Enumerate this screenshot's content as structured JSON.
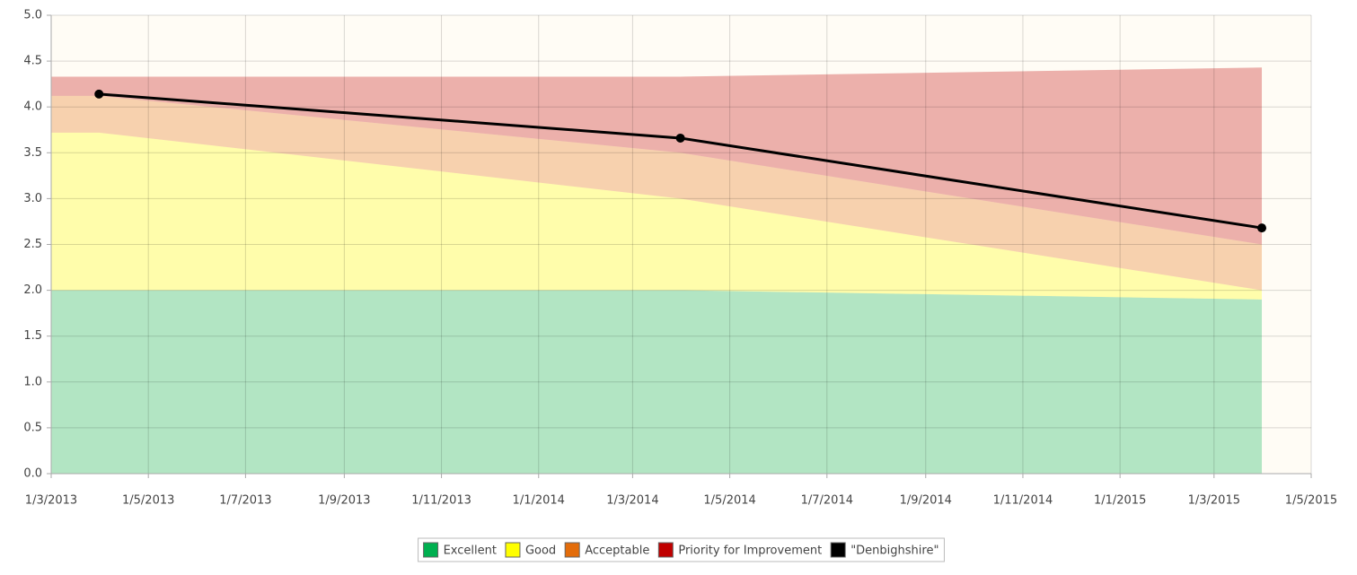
{
  "chart_data": {
    "type": "stacked_area_line",
    "x": [
      "2013-03-01",
      "2013-03-31",
      "2014-03-31",
      "2015-03-31"
    ],
    "series": [
      {
        "name": "Excellent",
        "type": "area",
        "color": "#00b050",
        "values": [
          2.0,
          2.0,
          2.0,
          1.9
        ]
      },
      {
        "name": "Good",
        "type": "area",
        "color": "#ffff00",
        "values": [
          1.72,
          1.72,
          1.0,
          0.1
        ]
      },
      {
        "name": "Acceptable",
        "type": "area",
        "color": "#e36c0a",
        "values": [
          0.4,
          0.4,
          0.5,
          0.5
        ]
      },
      {
        "name": "Priority for Improvement",
        "type": "area",
        "color": "#c00000",
        "values": [
          0.21,
          0.21,
          0.83,
          1.93
        ]
      },
      {
        "name": "\"Denbighshire\"",
        "type": "line",
        "color": "#000000",
        "values": [
          null,
          4.14,
          3.66,
          2.68
        ]
      }
    ],
    "ylim": [
      0,
      5
    ],
    "yticks": [
      {
        "value": 0,
        "label": "0.0"
      },
      {
        "value": 0.5,
        "label": "0.5"
      },
      {
        "value": 1,
        "label": "1.0"
      },
      {
        "value": 1.5,
        "label": "1.5"
      },
      {
        "value": 2,
        "label": "2.0"
      },
      {
        "value": 2.5,
        "label": "2.5"
      },
      {
        "value": 3,
        "label": "3.0"
      },
      {
        "value": 3.5,
        "label": "3.5"
      },
      {
        "value": 4,
        "label": "4.0"
      },
      {
        "value": 4.5,
        "label": "4.5"
      },
      {
        "value": 5,
        "label": "5.0"
      }
    ],
    "xlim": [
      "2013-03-01",
      "2015-05-01"
    ],
    "xticks": [
      {
        "value": "2013-03-01",
        "label": "1/3/2013"
      },
      {
        "value": "2013-05-01",
        "label": "1/5/2013"
      },
      {
        "value": "2013-07-01",
        "label": "1/7/2013"
      },
      {
        "value": "2013-09-01",
        "label": "1/9/2013"
      },
      {
        "value": "2013-11-01",
        "label": "1/11/2013"
      },
      {
        "value": "2014-01-01",
        "label": "1/1/2014"
      },
      {
        "value": "2014-03-01",
        "label": "1/3/2014"
      },
      {
        "value": "2014-05-01",
        "label": "1/5/2014"
      },
      {
        "value": "2014-07-01",
        "label": "1/7/2014"
      },
      {
        "value": "2014-09-01",
        "label": "1/9/2014"
      },
      {
        "value": "2014-11-01",
        "label": "1/11/2014"
      },
      {
        "value": "2015-01-01",
        "label": "1/1/2015"
      },
      {
        "value": "2015-03-01",
        "label": "1/3/2015"
      },
      {
        "value": "2015-05-01",
        "label": "1/5/2015"
      }
    ],
    "grid": true,
    "legend": "bottom"
  }
}
